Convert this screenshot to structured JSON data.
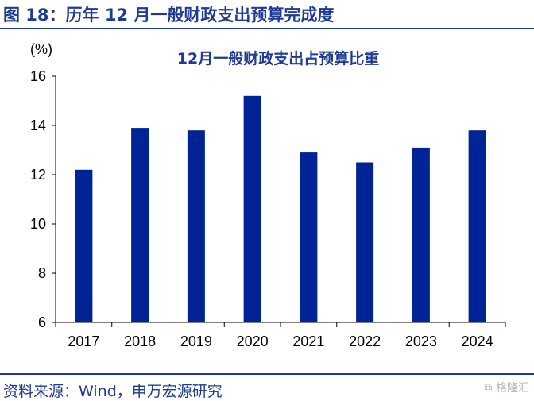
{
  "figure": {
    "title": "图 18：历年 12 月一般财政支出预算完成度",
    "source": "资料来源：Wind，申万宏源研究",
    "watermark": "格隆汇"
  },
  "colors": {
    "bar": "#002395",
    "title": "#1f3a93",
    "axis": "#000000"
  },
  "chart_data": {
    "type": "bar",
    "title": "12月一般财政支出占预算比重",
    "ylabel": "(%)",
    "xlabel": "",
    "categories": [
      "2017",
      "2018",
      "2019",
      "2020",
      "2021",
      "2022",
      "2023",
      "2024"
    ],
    "values": [
      12.2,
      13.9,
      13.8,
      15.2,
      12.9,
      12.5,
      13.1,
      13.8
    ],
    "ylim": [
      6,
      16
    ],
    "yticks": [
      6,
      8,
      10,
      12,
      14,
      16
    ],
    "grid": false,
    "legend": "none"
  }
}
